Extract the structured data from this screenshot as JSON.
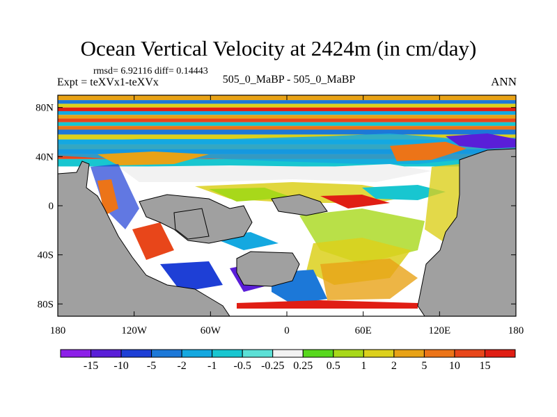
{
  "chart_data": {
    "type": "heatmap",
    "title": "Ocean Vertical Velocity at 2424m (in cm/day)",
    "stats_text": "rmsd= 6.92116 diff= 0.14443",
    "experiment_text": "Expt = teXVx1-teXVx",
    "experiment_name": "505_0_MaBP - 505_0_MaBP",
    "season": "ANN",
    "x_axis": {
      "range": [
        -180,
        180
      ],
      "ticks": [
        {
          "value": -180,
          "label": "180"
        },
        {
          "value": -120,
          "label": "120W"
        },
        {
          "value": -60,
          "label": "60W"
        },
        {
          "value": 0,
          "label": "0"
        },
        {
          "value": 60,
          "label": "60E"
        },
        {
          "value": 120,
          "label": "120E"
        },
        {
          "value": 180,
          "label": "180"
        }
      ]
    },
    "y_axis": {
      "range": [
        -90,
        90
      ],
      "ticks": [
        {
          "value": 80,
          "label": "80N"
        },
        {
          "value": 40,
          "label": "40N"
        },
        {
          "value": 0,
          "label": "0"
        },
        {
          "value": -40,
          "label": "40S"
        },
        {
          "value": -80,
          "label": "80S"
        }
      ]
    },
    "colorbar": {
      "labels": [
        "-15",
        "-10",
        "-5",
        "-2",
        "-1",
        "-0.5",
        "-0.25",
        "0.25",
        "0.5",
        "1",
        "2",
        "5",
        "10",
        "15"
      ],
      "colors": [
        "#8c1fe8",
        "#5a1ed8",
        "#1e3fd6",
        "#1c78d8",
        "#14a8e0",
        "#18c6d0",
        "#5ce0d6",
        "#f2f2f2",
        "#58d81e",
        "#a8d81a",
        "#dcd01c",
        "#e8a216",
        "#ec7418",
        "#e8461a",
        "#e01e14"
      ]
    },
    "land_color": "#a0a0a0",
    "zonal_bands": [
      {
        "lat_top": 90,
        "lat_bottom": 86,
        "color": "#e8a216"
      },
      {
        "lat_top": 86,
        "lat_bottom": 83,
        "color": "#1c78d8"
      },
      {
        "lat_top": 83,
        "lat_bottom": 80,
        "color": "#dcd01c"
      },
      {
        "lat_top": 80,
        "lat_bottom": 77,
        "color": "#e01e14"
      },
      {
        "lat_top": 77,
        "lat_bottom": 74,
        "color": "#14a8e0"
      },
      {
        "lat_top": 74,
        "lat_bottom": 71,
        "color": "#e8a216"
      },
      {
        "lat_top": 71,
        "lat_bottom": 68,
        "color": "#e8461a"
      },
      {
        "lat_top": 68,
        "lat_bottom": 65,
        "color": "#18c6d0"
      },
      {
        "lat_top": 65,
        "lat_bottom": 62,
        "color": "#ec7418"
      },
      {
        "lat_top": 62,
        "lat_bottom": 58,
        "color": "#1c78d8"
      },
      {
        "lat_top": 58,
        "lat_bottom": 54,
        "color": "#dcd01c"
      },
      {
        "lat_top": 54,
        "lat_bottom": 50,
        "color": "#14a8e0"
      },
      {
        "lat_top": 50,
        "lat_bottom": 46,
        "color": "#e8a216"
      },
      {
        "lat_top": 46,
        "lat_bottom": 42,
        "color": "#1e3fd6"
      },
      {
        "lat_top": 42,
        "lat_bottom": 38,
        "color": "#e8461a"
      },
      {
        "lat_top": 38,
        "lat_bottom": 32,
        "color": "#18c6d0"
      }
    ]
  }
}
